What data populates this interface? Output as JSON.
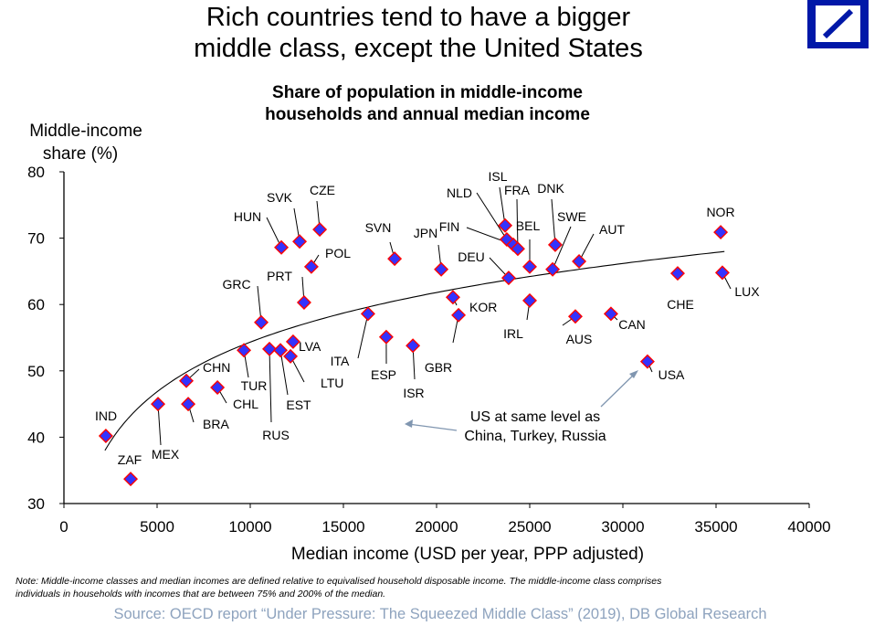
{
  "title_line1": "Rich countries tend to have a bigger",
  "title_line2": "middle class, except the United States",
  "subtitle_line1": "Share of population in middle-income",
  "subtitle_line2": "households and annual median income",
  "annotation_line1": "US at same level as",
  "annotation_line2": "China, Turkey, Russia",
  "note_line1": "Note: Middle-income classes and median incomes are defined relative to equivalised household disposable income. The middle-income class comprises",
  "note_line2": "individuals in households with incomes that are between 75% and 200% of the median.",
  "source": "Source: OECD report “Under Pressure: The Squeezed Middle Class” (2019), DB Global Research",
  "colors": {
    "marker_fill": "#3333FF",
    "marker_edge": "#FF0000",
    "logo": "#0018A8",
    "source_text": "#8EA3BE",
    "annotation_arrow": "#8096B0"
  },
  "chart_data": {
    "type": "scatter",
    "xlabel": "Median income (USD per year, PPP adjusted)",
    "ylabel_line1": "Middle-income",
    "ylabel_line2": "share (%)",
    "xlim": [
      0,
      40000
    ],
    "ylim": [
      30,
      80
    ],
    "xticks": [
      "0",
      "5000",
      "10000",
      "15000",
      "20000",
      "25000",
      "30000",
      "35000",
      "40000"
    ],
    "yticks": [
      "30",
      "40",
      "50",
      "60",
      "70",
      "80"
    ],
    "grid": false,
    "trendline": "logarithmic",
    "points": [
      {
        "code": "IND",
        "x": 2250,
        "y": 40.2
      },
      {
        "code": "ZAF",
        "x": 3580,
        "y": 33.7
      },
      {
        "code": "MEX",
        "x": 5050,
        "y": 45.0
      },
      {
        "code": "BRA",
        "x": 6670,
        "y": 45.0
      },
      {
        "code": "CHN",
        "x": 6570,
        "y": 48.5
      },
      {
        "code": "CHL",
        "x": 8240,
        "y": 47.5
      },
      {
        "code": "TUR",
        "x": 9660,
        "y": 53.1
      },
      {
        "code": "RUS",
        "x": 11030,
        "y": 53.3
      },
      {
        "code": "EST",
        "x": 11620,
        "y": 53.1
      },
      {
        "code": "LTU",
        "x": 12160,
        "y": 52.2
      },
      {
        "code": "LVA",
        "x": 12300,
        "y": 54.4
      },
      {
        "code": "GRC",
        "x": 10590,
        "y": 57.3
      },
      {
        "code": "HUN",
        "x": 11670,
        "y": 68.6
      },
      {
        "code": "SVK",
        "x": 12650,
        "y": 69.5
      },
      {
        "code": "CZE",
        "x": 13730,
        "y": 71.3
      },
      {
        "code": "POL",
        "x": 13280,
        "y": 65.7
      },
      {
        "code": "PRT",
        "x": 12890,
        "y": 60.3
      },
      {
        "code": "ITA",
        "x": 16320,
        "y": 58.6
      },
      {
        "code": "SVN",
        "x": 17750,
        "y": 66.9
      },
      {
        "code": "ESP",
        "x": 17300,
        "y": 55.1
      },
      {
        "code": "ISR",
        "x": 18730,
        "y": 53.8
      },
      {
        "code": "JPN",
        "x": 20250,
        "y": 65.3
      },
      {
        "code": "KOR",
        "x": 20880,
        "y": 61.1
      },
      {
        "code": "GBR",
        "x": 21180,
        "y": 58.4
      },
      {
        "code": "DEU",
        "x": 23870,
        "y": 64.0
      },
      {
        "code": "ISL",
        "x": 23680,
        "y": 71.9
      },
      {
        "code": "NLD",
        "x": 23770,
        "y": 69.8
      },
      {
        "code": "FIN",
        "x": 24120,
        "y": 69.0
      },
      {
        "code": "FRA",
        "x": 24360,
        "y": 68.4
      },
      {
        "code": "BEL",
        "x": 25000,
        "y": 65.7
      },
      {
        "code": "DNK",
        "x": 26370,
        "y": 69.0
      },
      {
        "code": "SWE",
        "x": 26230,
        "y": 65.3
      },
      {
        "code": "AUT",
        "x": 27650,
        "y": 66.5
      },
      {
        "code": "IRL",
        "x": 25000,
        "y": 60.6
      },
      {
        "code": "AUS",
        "x": 27450,
        "y": 58.2
      },
      {
        "code": "CAN",
        "x": 29360,
        "y": 58.6
      },
      {
        "code": "CHE",
        "x": 32940,
        "y": 64.7
      },
      {
        "code": "NOR",
        "x": 35250,
        "y": 70.9
      },
      {
        "code": "LUX",
        "x": 35340,
        "y": 64.8
      },
      {
        "code": "USA",
        "x": 31320,
        "y": 51.4
      }
    ]
  }
}
